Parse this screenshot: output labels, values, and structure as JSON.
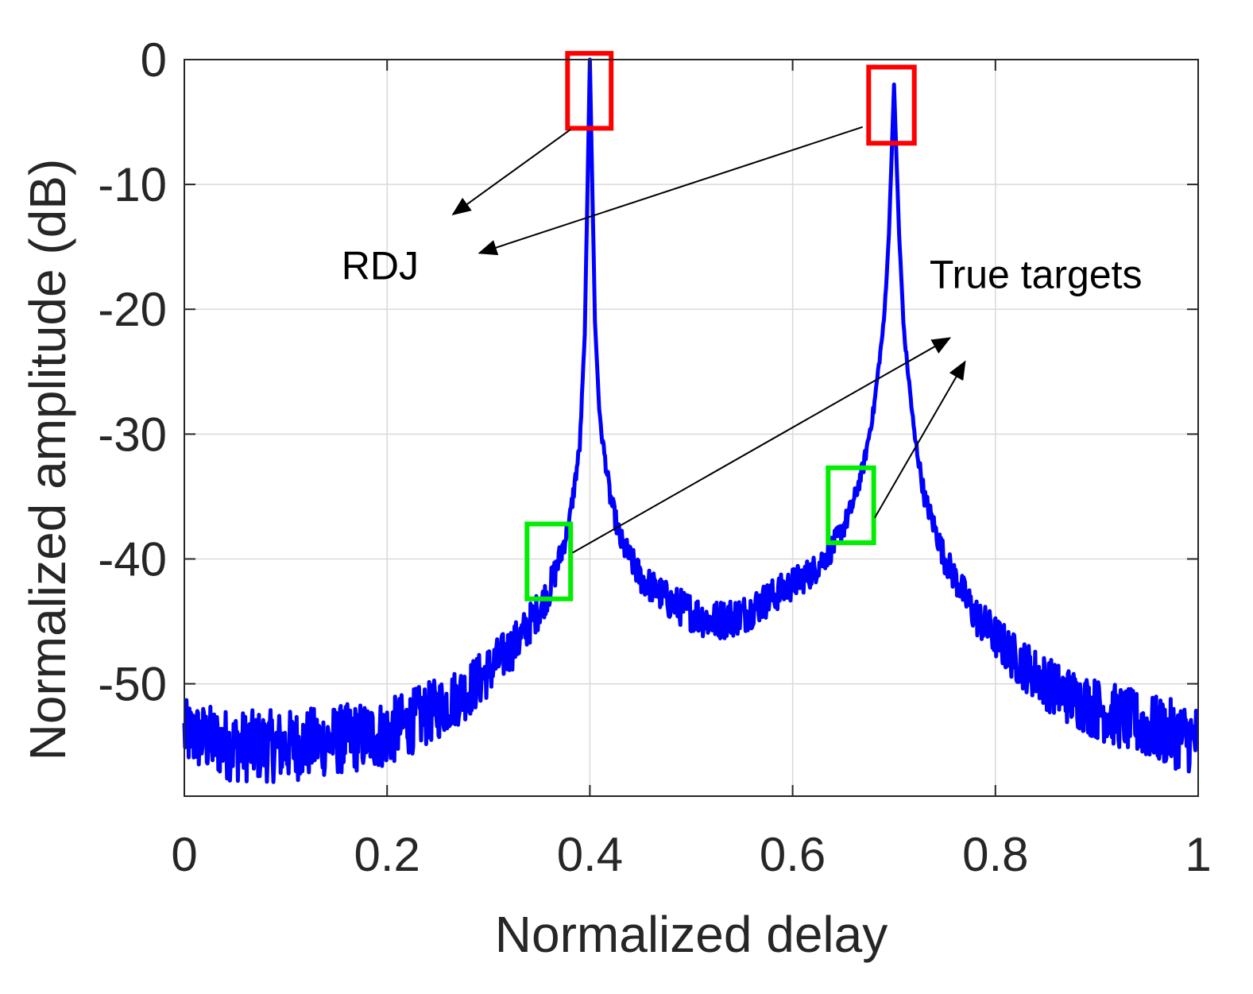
{
  "chart_data": {
    "type": "line",
    "title": "",
    "xlabel": "Normalized delay",
    "ylabel": "Normalized amplitude (dB)",
    "xlim": [
      0,
      1
    ],
    "ylim": [
      -59,
      0
    ],
    "grid": true,
    "x_ticks": [
      0,
      0.2,
      0.4,
      0.6,
      0.8,
      1
    ],
    "x_tick_labels": [
      "0",
      "0.2",
      "0.4",
      "0.6",
      "0.8",
      "1"
    ],
    "y_ticks": [
      0,
      -10,
      -20,
      -30,
      -40,
      -50
    ],
    "y_tick_labels": [
      "0",
      "-10",
      "-20",
      "-30",
      "-40",
      "-50"
    ],
    "series": [
      {
        "name": "Normalized amplitude",
        "color": "#0000ff",
        "x": [
          0,
          0.05,
          0.1,
          0.15,
          0.2,
          0.25,
          0.28,
          0.3,
          0.33,
          0.35,
          0.36,
          0.37,
          0.38,
          0.39,
          0.395,
          0.4,
          0.405,
          0.41,
          0.42,
          0.43,
          0.45,
          0.48,
          0.52,
          0.55,
          0.58,
          0.62,
          0.64,
          0.65,
          0.66,
          0.67,
          0.68,
          0.69,
          0.695,
          0.7,
          0.705,
          0.71,
          0.72,
          0.73,
          0.75,
          0.78,
          0.82,
          0.86,
          0.9,
          0.95,
          1
        ],
        "values": [
          -54,
          -55,
          -55,
          -54.5,
          -54,
          -52,
          -50.5,
          -49,
          -46.5,
          -44,
          -42.5,
          -40,
          -37,
          -31,
          -22,
          0,
          -21,
          -29,
          -35,
          -38.5,
          -41.5,
          -43.5,
          -45,
          -44.5,
          -43,
          -41,
          -39,
          -37.5,
          -35.5,
          -32.5,
          -28,
          -21,
          -14,
          -2,
          -14,
          -22,
          -30,
          -35,
          -40,
          -44.5,
          -48,
          -50.5,
          -52,
          -53.5,
          -54.5
        ]
      }
    ],
    "annotations": [
      {
        "text": "RDJ",
        "x": 0.155,
        "y": -17.6
      },
      {
        "text": "True targets",
        "x": 0.735,
        "y": -18.3
      }
    ],
    "highlight_boxes": [
      {
        "label": "RDJ",
        "color": "#ff0000",
        "x_range": [
          0.378,
          0.421
        ],
        "y_range": [
          -5.5,
          0.5
        ]
      },
      {
        "label": "RDJ",
        "color": "#ff0000",
        "x_range": [
          0.675,
          0.72
        ],
        "y_range": [
          -6.7,
          -0.6
        ]
      },
      {
        "label": "True targets",
        "color": "#00ee00",
        "x_range": [
          0.338,
          0.381
        ],
        "y_range": [
          -43.2,
          -37.2
        ]
      },
      {
        "label": "True targets",
        "color": "#00ee00",
        "x_range": [
          0.635,
          0.68
        ],
        "y_range": [
          -38.7,
          -32.7
        ]
      }
    ],
    "arrows": [
      {
        "label": "RDJ",
        "from": [
          0.381,
          -5.6
        ],
        "to": [
          0.265,
          -12.4
        ]
      },
      {
        "label": "RDJ",
        "from": [
          0.669,
          -5.4
        ],
        "to": [
          0.291,
          -15.5
        ]
      },
      {
        "label": "True targets",
        "from": [
          0.383,
          -39.5
        ],
        "to": [
          0.755,
          -22.3
        ]
      },
      {
        "label": "True targets",
        "from": [
          0.681,
          -36.7
        ],
        "to": [
          0.77,
          -24.2
        ]
      }
    ]
  }
}
